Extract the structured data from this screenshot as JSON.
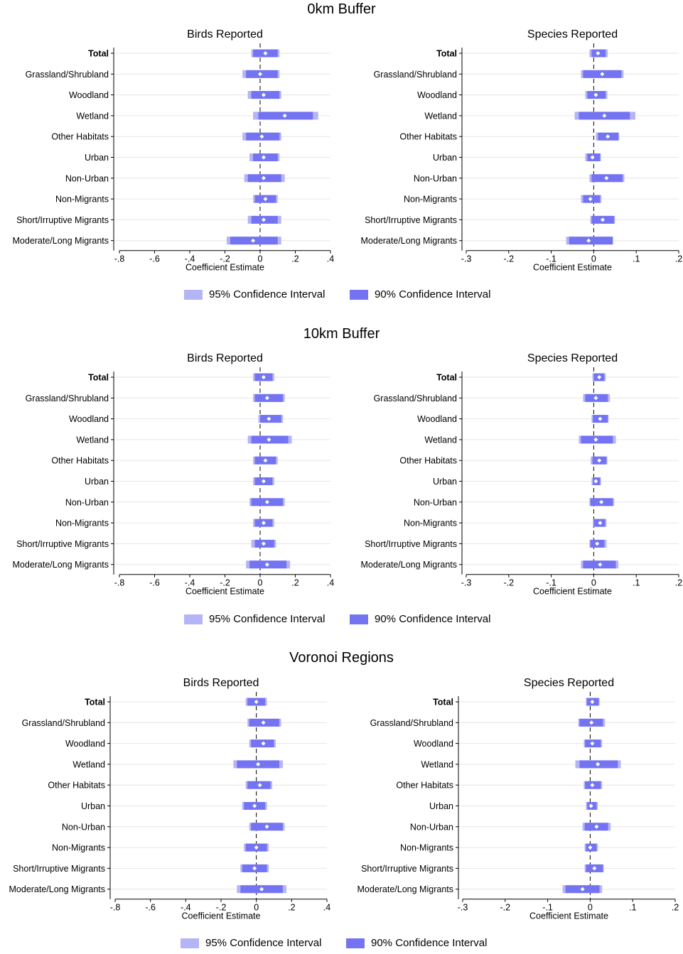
{
  "legend": {
    "ci95_label": "95% Confidence Interval",
    "ci90_label": "90% Confidence Interval",
    "ci95_color": "#b4b4f7",
    "ci90_color": "#7474f3",
    "point_color": "#ffffff"
  },
  "panels": [
    {
      "title": "0km Buffer"
    },
    {
      "title": "10km Buffer"
    },
    {
      "title": "Voronoi Regions"
    }
  ],
  "chart_data": [
    {
      "panel": "0km Buffer",
      "type": "coefficient_plot",
      "title": "Birds Reported",
      "xlabel": "Coefficient Estimate",
      "xlim": [
        -0.8,
        0.4
      ],
      "xticks": [
        -0.8,
        -0.6,
        -0.4,
        -0.2,
        0,
        0.2,
        0.4
      ],
      "xtick_labels": [
        "-.8",
        "-.6",
        "-.4",
        "-.2",
        "0",
        ".2",
        ".4"
      ],
      "reference_line": 0,
      "categories": [
        "Total",
        "Grassland/Shrubland",
        "Woodland",
        "Wetland",
        "Other Habitats",
        "Urban",
        "Non-Urban",
        "Non-Migrants",
        "Short/Irruptive Migrants",
        "Moderate/Long Migrants"
      ],
      "estimate": [
        0.03,
        0.0,
        0.02,
        0.14,
        0.01,
        0.02,
        0.02,
        0.03,
        0.02,
        -0.04
      ],
      "ci90": [
        [
          -0.04,
          0.1
        ],
        [
          -0.08,
          0.1
        ],
        [
          -0.05,
          0.11
        ],
        [
          -0.01,
          0.3
        ],
        [
          -0.08,
          0.11
        ],
        [
          -0.04,
          0.1
        ],
        [
          -0.07,
          0.12
        ],
        [
          -0.03,
          0.09
        ],
        [
          -0.05,
          0.1
        ],
        [
          -0.17,
          0.1
        ]
      ],
      "ci95": [
        [
          -0.05,
          0.11
        ],
        [
          -0.1,
          0.11
        ],
        [
          -0.07,
          0.12
        ],
        [
          -0.04,
          0.33
        ],
        [
          -0.1,
          0.12
        ],
        [
          -0.06,
          0.11
        ],
        [
          -0.09,
          0.14
        ],
        [
          -0.04,
          0.1
        ],
        [
          -0.07,
          0.12
        ],
        [
          -0.19,
          0.12
        ]
      ]
    },
    {
      "panel": "0km Buffer",
      "type": "coefficient_plot",
      "title": "Species Reported",
      "xlabel": "Coefficient Estimate",
      "xlim": [
        -0.3,
        0.2
      ],
      "xticks": [
        -0.3,
        -0.2,
        -0.1,
        0,
        0.1,
        0.2
      ],
      "xtick_labels": [
        "-.3",
        "-.2",
        "-.1",
        "0",
        ".1",
        ".2"
      ],
      "reference_line": 0,
      "categories": [
        "Total",
        "Grassland/Shrubland",
        "Woodland",
        "Wetland",
        "Other Habitats",
        "Urban",
        "Non-Urban",
        "Non-Migrants",
        "Short/Irruptive Migrants",
        "Moderate/Long Migrants"
      ],
      "estimate": [
        0.01,
        0.02,
        0.005,
        0.025,
        0.033,
        -0.003,
        0.03,
        -0.008,
        0.021,
        -0.012
      ],
      "ci90": [
        [
          -0.005,
          0.028
        ],
        [
          -0.025,
          0.065
        ],
        [
          -0.015,
          0.028
        ],
        [
          -0.035,
          0.085
        ],
        [
          0.01,
          0.058
        ],
        [
          -0.015,
          0.015
        ],
        [
          -0.005,
          0.068
        ],
        [
          -0.025,
          0.015
        ],
        [
          -0.005,
          0.048
        ],
        [
          -0.058,
          0.045
        ]
      ],
      "ci95": [
        [
          -0.01,
          0.033
        ],
        [
          -0.03,
          0.07
        ],
        [
          -0.02,
          0.032
        ],
        [
          -0.045,
          0.098
        ],
        [
          0.005,
          0.06
        ],
        [
          -0.02,
          0.017
        ],
        [
          -0.01,
          0.072
        ],
        [
          -0.03,
          0.018
        ],
        [
          -0.008,
          0.05
        ],
        [
          -0.065,
          0.045
        ]
      ]
    },
    {
      "panel": "10km Buffer",
      "type": "coefficient_plot",
      "title": "Birds Reported",
      "xlabel": "Coefficient Estimate",
      "xlim": [
        -0.8,
        0.4
      ],
      "xticks": [
        -0.8,
        -0.6,
        -0.4,
        -0.2,
        0,
        0.2,
        0.4
      ],
      "xtick_labels": [
        "-.8",
        "-.6",
        "-.4",
        "-.2",
        "0",
        ".2",
        ".4"
      ],
      "reference_line": 0,
      "categories": [
        "Total",
        "Grassland/Shrubland",
        "Woodland",
        "Wetland",
        "Other Habitats",
        "Urban",
        "Non-Urban",
        "Non-Migrants",
        "Short/Irruptive Migrants",
        "Moderate/Long Migrants"
      ],
      "estimate": [
        0.02,
        0.04,
        0.05,
        0.05,
        0.03,
        0.02,
        0.04,
        0.02,
        0.02,
        0.04
      ],
      "ci90": [
        [
          -0.03,
          0.07
        ],
        [
          -0.03,
          0.13
        ],
        [
          0.0,
          0.12
        ],
        [
          -0.05,
          0.16
        ],
        [
          -0.03,
          0.09
        ],
        [
          -0.03,
          0.07
        ],
        [
          -0.05,
          0.13
        ],
        [
          -0.03,
          0.07
        ],
        [
          -0.03,
          0.08
        ],
        [
          -0.06,
          0.15
        ]
      ],
      "ci95": [
        [
          -0.04,
          0.08
        ],
        [
          -0.04,
          0.14
        ],
        [
          -0.01,
          0.13
        ],
        [
          -0.07,
          0.18
        ],
        [
          -0.04,
          0.1
        ],
        [
          -0.04,
          0.08
        ],
        [
          -0.06,
          0.14
        ],
        [
          -0.04,
          0.08
        ],
        [
          -0.05,
          0.09
        ],
        [
          -0.08,
          0.17
        ]
      ]
    },
    {
      "panel": "10km Buffer",
      "type": "coefficient_plot",
      "title": "Species Reported",
      "xlabel": "Coefficient Estimate",
      "xlim": [
        -0.3,
        0.2
      ],
      "xticks": [
        -0.3,
        -0.2,
        -0.1,
        0,
        0.1,
        0.2
      ],
      "xtick_labels": [
        "-.3",
        "-.2",
        "-.1",
        "0",
        ".1",
        ".2"
      ],
      "reference_line": 0,
      "categories": [
        "Total",
        "Grassland/Shrubland",
        "Woodland",
        "Wetland",
        "Other Habitats",
        "Urban",
        "Non-Urban",
        "Non-Migrants",
        "Short/Irruptive Migrants",
        "Moderate/Long Migrants"
      ],
      "estimate": [
        0.013,
        0.005,
        0.015,
        0.005,
        0.013,
        0.005,
        0.018,
        0.015,
        0.008,
        0.015
      ],
      "ci90": [
        [
          0.0,
          0.025
        ],
        [
          -0.02,
          0.033
        ],
        [
          -0.002,
          0.033
        ],
        [
          -0.03,
          0.045
        ],
        [
          -0.003,
          0.03
        ],
        [
          -0.002,
          0.015
        ],
        [
          -0.008,
          0.045
        ],
        [
          0.0,
          0.027
        ],
        [
          -0.008,
          0.025
        ],
        [
          -0.025,
          0.052
        ]
      ],
      "ci95": [
        [
          -0.003,
          0.028
        ],
        [
          -0.025,
          0.038
        ],
        [
          -0.005,
          0.035
        ],
        [
          -0.035,
          0.052
        ],
        [
          -0.007,
          0.032
        ],
        [
          -0.005,
          0.017
        ],
        [
          -0.01,
          0.048
        ],
        [
          -0.002,
          0.03
        ],
        [
          -0.01,
          0.03
        ],
        [
          -0.03,
          0.058
        ]
      ]
    },
    {
      "panel": "Voronoi Regions",
      "type": "coefficient_plot",
      "title": "Birds Reported",
      "xlabel": "Coefficient Estimate",
      "xlim": [
        -0.8,
        0.4
      ],
      "xticks": [
        -0.8,
        -0.6,
        -0.4,
        -0.2,
        0,
        0.2,
        0.4
      ],
      "xtick_labels": [
        "-.8",
        "-.6",
        "-.4",
        "-.2",
        "0",
        ".2",
        ".4"
      ],
      "reference_line": 0,
      "categories": [
        "Total",
        "Grassland/Shrubland",
        "Woodland",
        "Wetland",
        "Other Habitats",
        "Urban",
        "Non-Urban",
        "Non-Migrants",
        "Short/Irruptive Migrants",
        "Moderate/Long Migrants"
      ],
      "estimate": [
        0.0,
        0.04,
        0.04,
        0.01,
        0.02,
        -0.01,
        0.06,
        0.0,
        -0.01,
        0.03
      ],
      "ci90": [
        [
          -0.05,
          0.05
        ],
        [
          -0.04,
          0.13
        ],
        [
          -0.03,
          0.1
        ],
        [
          -0.11,
          0.13
        ],
        [
          -0.05,
          0.08
        ],
        [
          -0.07,
          0.05
        ],
        [
          -0.03,
          0.15
        ],
        [
          -0.06,
          0.06
        ],
        [
          -0.08,
          0.06
        ],
        [
          -0.09,
          0.15
        ]
      ],
      "ci95": [
        [
          -0.06,
          0.06
        ],
        [
          -0.05,
          0.14
        ],
        [
          -0.04,
          0.11
        ],
        [
          -0.13,
          0.15
        ],
        [
          -0.06,
          0.09
        ],
        [
          -0.08,
          0.06
        ],
        [
          -0.04,
          0.16
        ],
        [
          -0.07,
          0.07
        ],
        [
          -0.09,
          0.07
        ],
        [
          -0.11,
          0.17
        ]
      ]
    },
    {
      "panel": "Voronoi Regions",
      "type": "coefficient_plot",
      "title": "Species Reported",
      "xlabel": "Coefficient Estimate",
      "xlim": [
        -0.3,
        0.2
      ],
      "xticks": [
        -0.3,
        -0.2,
        -0.1,
        0,
        0.1,
        0.2
      ],
      "xtick_labels": [
        "-.3",
        "-.2",
        "-.1",
        "0",
        ".1",
        ".2"
      ],
      "reference_line": 0,
      "categories": [
        "Total",
        "Grassland/Shrubland",
        "Woodland",
        "Wetland",
        "Other Habitats",
        "Urban",
        "Non-Urban",
        "Non-Migrants",
        "Short/Irruptive Migrants",
        "Moderate/Long Migrants"
      ],
      "estimate": [
        0.005,
        0.003,
        0.005,
        0.018,
        0.005,
        0.002,
        0.015,
        0.0,
        0.01,
        -0.018
      ],
      "ci90": [
        [
          -0.008,
          0.02
        ],
        [
          -0.025,
          0.03
        ],
        [
          -0.012,
          0.025
        ],
        [
          -0.025,
          0.065
        ],
        [
          -0.012,
          0.025
        ],
        [
          -0.007,
          0.015
        ],
        [
          -0.013,
          0.042
        ],
        [
          -0.01,
          0.015
        ],
        [
          -0.01,
          0.03
        ],
        [
          -0.058,
          0.022
        ]
      ],
      "ci95": [
        [
          -0.01,
          0.022
        ],
        [
          -0.028,
          0.035
        ],
        [
          -0.015,
          0.028
        ],
        [
          -0.035,
          0.072
        ],
        [
          -0.015,
          0.028
        ],
        [
          -0.01,
          0.018
        ],
        [
          -0.018,
          0.048
        ],
        [
          -0.013,
          0.018
        ],
        [
          -0.013,
          0.032
        ],
        [
          -0.065,
          0.028
        ]
      ]
    }
  ]
}
